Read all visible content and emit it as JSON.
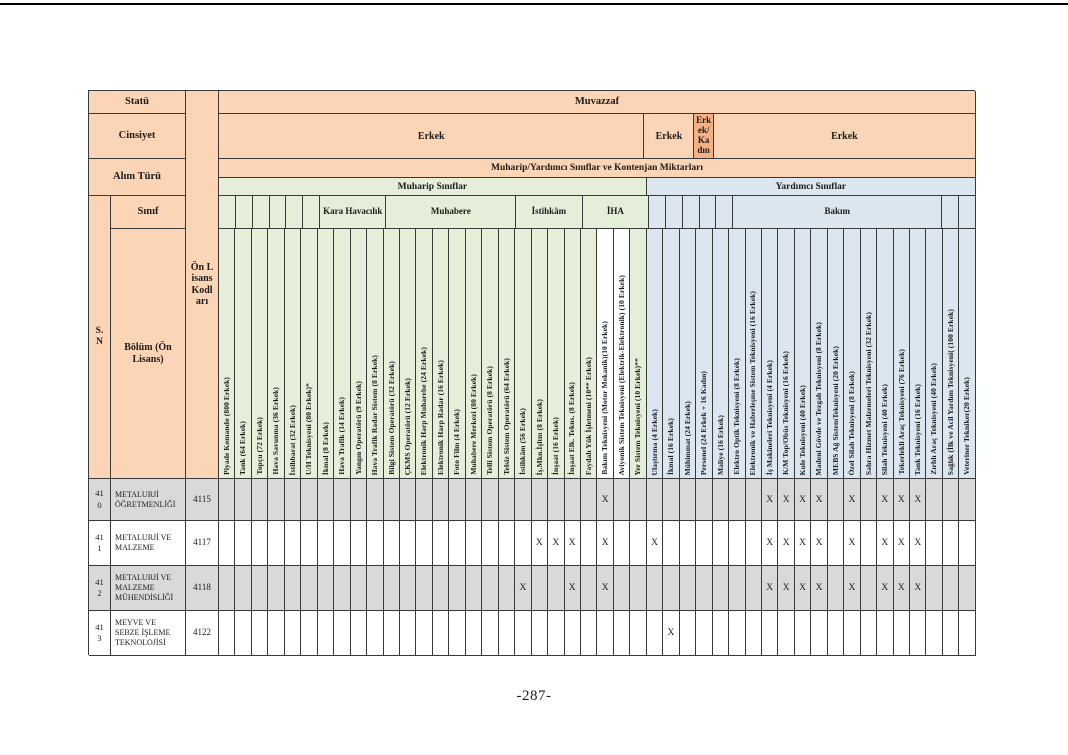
{
  "page": {
    "footer": "-287-"
  },
  "colors": {
    "header_peach": "#fbd5b5",
    "header_dark_orange": "#f5b183",
    "muharip_green": "#e4eed9",
    "yardimci_blue": "#dce6f1",
    "row_shade_grey": "#d9d9d9",
    "grid_line": "#3a3a3a"
  },
  "table": {
    "corner": {
      "statu": "Statü",
      "cinsiyet": "Cinsiyet",
      "alim_turu": "Alım Türü",
      "sn": "S. N",
      "sinif": "Sınıf",
      "bolum": "Bölüm (Ön Lisans)",
      "on_lisans_kodlari": "Ön Lisans Kodları"
    },
    "top": {
      "muvazzaf": "Muvazzaf",
      "kontenjan": "Muharip/Yardımcı Sınıflar ve Kontenjan Miktarları",
      "gender_row": [
        {
          "label": "Erkek",
          "span": 26,
          "style": "light"
        },
        {
          "label": "Erkek",
          "span": 3,
          "style": "light"
        },
        {
          "label": "Erkek/Kadın",
          "span": 1,
          "style": "dark"
        },
        {
          "label": "Erkek",
          "span": 16,
          "style": "light"
        }
      ],
      "sections": [
        {
          "label": "Muharip Sınıflar",
          "span": 26,
          "sec": "green"
        },
        {
          "label": "Yardımcı Sınıflar",
          "span": 20,
          "sec": "blue"
        }
      ],
      "groups": [
        {
          "label": null,
          "span": 6,
          "sec": "green"
        },
        {
          "label": "Kara Havacılık",
          "span": 4,
          "sec": "green"
        },
        {
          "label": "Muhabere",
          "span": 8,
          "sec": "green"
        },
        {
          "label": "İstihkâm",
          "span": 4,
          "sec": "green"
        },
        {
          "label": "İHA",
          "span": 4,
          "sec": "green"
        },
        {
          "label": null,
          "span": 5,
          "sec": "blue"
        },
        {
          "label": "Bakım",
          "span": 13,
          "sec": "blue"
        },
        {
          "label": null,
          "span": 2,
          "sec": "blue"
        }
      ]
    },
    "columns": [
      {
        "label": "Piyade Komando (800 Erkek)",
        "sec": "green"
      },
      {
        "label": "Tank (64 Erkek)",
        "sec": "green"
      },
      {
        "label": "Topçu (72 Erkek)",
        "sec": "green"
      },
      {
        "label": "Hava Savunma (36 Erkek)",
        "sec": "green"
      },
      {
        "label": "İstihbarat (32 Erkek)",
        "sec": "green"
      },
      {
        "label": "U/H Teknisyeni  (80 Erkek)*",
        "sec": "green"
      },
      {
        "label": "İkmal  (8 Erkek)",
        "sec": "green"
      },
      {
        "label": "Hava Trafik  (14 Erkek)",
        "sec": "green"
      },
      {
        "label": "Yangın Operatörü  (9 Erkek)",
        "sec": "green"
      },
      {
        "label": "Hava Trafik Radar Sistem (8 Erkek)",
        "sec": "green"
      },
      {
        "label": "Bilgi Sistem Operatörü  (32 Erkek)",
        "sec": "green"
      },
      {
        "label": "ÇKMS Operatörü (12 Erkek)",
        "sec": "green"
      },
      {
        "label": "Elektronik Harp Muharebe (24 Erkek)",
        "sec": "green"
      },
      {
        "label": "Elektronik Harp Radar  (16 Erkek)",
        "sec": "green"
      },
      {
        "label": "Foto Film (4 Erkek)",
        "sec": "green"
      },
      {
        "label": "Muhabere Merkezi (80 Erkek)",
        "sec": "green"
      },
      {
        "label": "Telli Sistem Operatörü (8 Erkek)",
        "sec": "green"
      },
      {
        "label": "Telsiz Sistem Operatörü (64 Erkek)",
        "sec": "green"
      },
      {
        "label": "İstihkâm (56 Erkek)",
        "sec": "green"
      },
      {
        "label": "İş.Mkn.İşltm (8 Erkek)",
        "sec": "green"
      },
      {
        "label": "İnşaat  (16 Erkek)",
        "sec": "green"
      },
      {
        "label": "İnşaat Elk. Tekns. (8 Erkek)",
        "sec": "green"
      },
      {
        "label": "Faydalı Yük İşletmeni (10** Erkek)",
        "sec": "green"
      },
      {
        "label": "Bakım Teknisyeni (Motor Mekanik)(10 Erkek)",
        "sec": "white"
      },
      {
        "label": "Aviyonik Sistem Teknisyeni (Elektrik-Elektronik) (10 Erkek)",
        "sec": "white"
      },
      {
        "label": "Yer Sistem Teknisyeni (10 Erkek)**",
        "sec": "green"
      },
      {
        "label": "Ulaştırma  (4 Erkek)",
        "sec": "blue"
      },
      {
        "label": "İkmal   (16 Erkek)",
        "sec": "blue"
      },
      {
        "label": "Mühimmat  (24 Erkek)",
        "sec": "blue"
      },
      {
        "label": "Personel  (24 Erkek + 16 Kadın)",
        "sec": "blue"
      },
      {
        "label": "Maliye  (16 Erkek)",
        "sec": "blue"
      },
      {
        "label": "Elektro Optik Teknisyeni   (8 Erkek)",
        "sec": "blue"
      },
      {
        "label": "Elektronik ve Haberleşme Sistem Teknisyeni (16 Erkek)",
        "sec": "blue"
      },
      {
        "label": "İş Makineleri Teknisyeni (4 Erkek)",
        "sec": "blue"
      },
      {
        "label": "K/M Top/Obüs  Teknisyeni (16 Erkek)",
        "sec": "blue"
      },
      {
        "label": "Kule Teknisyeni (40 Erkek)",
        "sec": "blue"
      },
      {
        "label": "Madeni Gövde ve Tezgah Teknisyeni  (8 Erkek)",
        "sec": "blue"
      },
      {
        "label": "MEBS Ağ SistemTeknisyeni (20 Erkek)",
        "sec": "blue"
      },
      {
        "label": "Özel Silah Teknisyeni (8 Erkek)",
        "sec": "blue"
      },
      {
        "label": "Sahra Hizmet  Malzemeleri Teknisyeni  (32 Erkek)",
        "sec": "blue"
      },
      {
        "label": "Silah Teknisyeni  (40 Erkek)",
        "sec": "blue"
      },
      {
        "label": "Tekerlekli Araç Teknisyeni  (76 Erkek)",
        "sec": "blue"
      },
      {
        "label": "Tank Teknisyeni   (16 Erkek)",
        "sec": "blue"
      },
      {
        "label": "Zırhlı Araç Teknisyeni  (40 Erkek)",
        "sec": "blue"
      },
      {
        "label": "Sağlık (İlk ve Acil Yardım Teknisyeni( (100 Erkek)",
        "sec": "blue"
      },
      {
        "label": "Veteriner Tekniker(20 Erkek)",
        "sec": "blue"
      }
    ],
    "mark": "X",
    "rows": [
      {
        "sn": "410",
        "bolum": "METALURJİ ÖĞRETMENLİĞİ",
        "kod": "4115",
        "shade": true,
        "marks": [
          24,
          34,
          35,
          36,
          37,
          39,
          41,
          42,
          43
        ]
      },
      {
        "sn": "411",
        "bolum": "METALURJİ VE MALZEME",
        "kod": "4117",
        "shade": false,
        "marks": [
          20,
          21,
          22,
          24,
          27,
          34,
          35,
          36,
          37,
          39,
          41,
          42,
          43
        ]
      },
      {
        "sn": "412",
        "bolum": "METALURJİ VE MALZEME MÜHENDİSLİĞİ",
        "kod": "4118",
        "shade": true,
        "marks": [
          19,
          22,
          24,
          34,
          35,
          36,
          37,
          39,
          41,
          42,
          43
        ]
      },
      {
        "sn": "413",
        "bolum": "MEYVE VE SEBZE İŞLEME TEKNOLOJİSİ",
        "kod": "4122",
        "shade": false,
        "marks": [
          28
        ]
      }
    ]
  }
}
